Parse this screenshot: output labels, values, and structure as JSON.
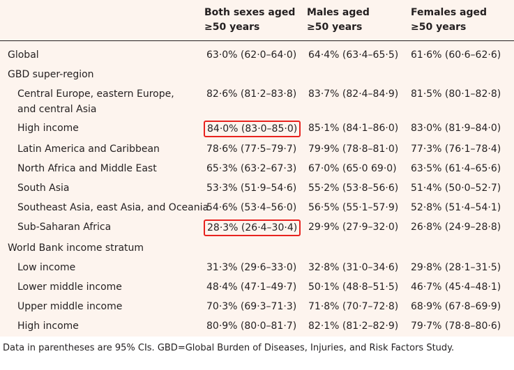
{
  "headers": [
    "",
    "Both sexes aged\n≥50 years",
    "Males aged\n≥50 years",
    "Females aged\n≥50 years"
  ],
  "header_lines": {
    "both": [
      "Both sexes aged",
      "≥50 years"
    ],
    "males": [
      "Males aged",
      "≥50 years"
    ],
    "females": [
      "Females aged",
      "≥50 years"
    ]
  },
  "rows": [
    {
      "label": "Global",
      "both": "63·0% (62·0–64·0)",
      "males": "64·4% (63·4–65·5)",
      "females": "61·6% (60·6–62·6)"
    },
    {
      "label": "GBD super-region",
      "both": "",
      "males": "",
      "females": ""
    },
    {
      "label": "Central Europe, eastern Europe, and central Asia",
      "both": "82·6% (81·2–83·8)",
      "males": "83·7% (82·4–84·9)",
      "females": "81·5% (80·1–82·8)"
    },
    {
      "label": "High income",
      "both": "84·0% (83·0–85·0)",
      "males": "85·1% (84·1–86·0)",
      "females": "83·0% (81·9–84·0)"
    },
    {
      "label": "Latin America and Caribbean",
      "both": "78·6% (77·5–79·7)",
      "males": "79·9% (78·8–81·0)",
      "females": "77·3% (76·1–78·4)"
    },
    {
      "label": "North Africa and Middle East",
      "both": "65·3% (63·2–67·3)",
      "males": "67·0% (65·0 69·0)",
      "females": "63·5% (61·4–65·6)"
    },
    {
      "label": "South Asia",
      "both": "53·3% (51·9–54·6)",
      "males": "55·2% (53·8–56·6)",
      "females": "51·4% (50·0–52·7)"
    },
    {
      "label": "Southeast Asia, east Asia, and Oceania",
      "both": "54·6% (53·4–56·0)",
      "males": "56·5% (55·1–57·9)",
      "females": "52·8% (51·4–54·1)"
    },
    {
      "label": "Sub-Saharan Africa",
      "both": "28·3% (26·4–30·4)",
      "males": "29·9% (27·9–32·0)",
      "females": "26·8% (24·9–28·8)"
    },
    {
      "label": "World Bank income stratum",
      "both": "",
      "males": "",
      "females": ""
    },
    {
      "label": "Low income",
      "both": "31·3% (29·6–33·0)",
      "males": "32·8% (31·0–34·6)",
      "females": "29·8% (28·1–31·5)"
    },
    {
      "label": "Lower middle income",
      "both": "48·4% (47·1–49·7)",
      "males": "50·1% (48·8–51·5)",
      "females": "46·7% (45·4–48·1)"
    },
    {
      "label": "Upper middle income",
      "both": "70·3% (69·3–71·3)",
      "males": "71·8% (70·7–72·8)",
      "females": "68·9% (67·8–69·9)"
    },
    {
      "label": "High income",
      "both": "80·9% (80·0–81·7)",
      "males": "82·1% (81·2–82·9)",
      "females": "79·7% (78·8–80·6)"
    }
  ],
  "highlighted_cells": [
    "High income — Both sexes",
    "Sub-Saharan Africa — Both sexes"
  ],
  "highlight_color": "#e8231f",
  "background_color": "#fdf4ee",
  "footnote": "Data in parentheses are 95% CIs. GBD=Global Burden of Diseases, Injuries, and Risk Factors Study."
}
